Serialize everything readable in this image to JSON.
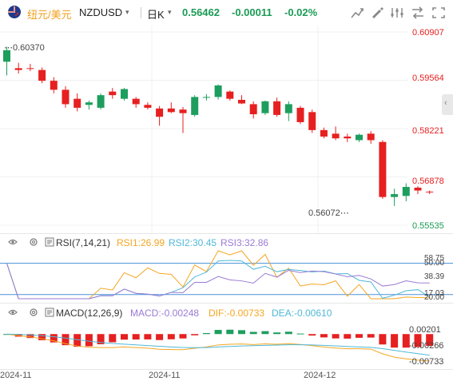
{
  "header": {
    "symbol_cn": "纽元/美元",
    "symbol": "NZDUSD",
    "period": "日K",
    "price": "0.56462",
    "change": "-0.00011",
    "change_pct": "-0.02%"
  },
  "main_chart": {
    "price_labels": [
      "0.60907",
      "0.59564",
      "0.58221",
      "0.56878",
      "0.55535"
    ],
    "high_label": "0.60370",
    "low_label": "0.56072",
    "candles": [
      [
        0.6008,
        0.605,
        0.597,
        0.604
      ],
      [
        0.599,
        0.6005,
        0.5975,
        0.5985
      ],
      [
        0.599,
        0.6002,
        0.5982,
        0.5988
      ],
      [
        0.5985,
        0.5992,
        0.5948,
        0.5955
      ],
      [
        0.5955,
        0.5965,
        0.592,
        0.593
      ],
      [
        0.593,
        0.594,
        0.588,
        0.589
      ],
      [
        0.5905,
        0.592,
        0.587,
        0.588
      ],
      [
        0.5888,
        0.59,
        0.5875,
        0.5895
      ],
      [
        0.588,
        0.592,
        0.5875,
        0.5915
      ],
      [
        0.5925,
        0.5935,
        0.5905,
        0.5915
      ],
      [
        0.5905,
        0.5935,
        0.59,
        0.5932
      ],
      [
        0.5905,
        0.591,
        0.588,
        0.589
      ],
      [
        0.5888,
        0.5895,
        0.5875,
        0.588
      ],
      [
        0.5878,
        0.5885,
        0.583,
        0.5855
      ],
      [
        0.5878,
        0.5895,
        0.5865,
        0.5868
      ],
      [
        0.5875,
        0.5882,
        0.581,
        0.5865
      ],
      [
        0.586,
        0.5915,
        0.5855,
        0.591
      ],
      [
        0.591,
        0.5918,
        0.59,
        0.591
      ],
      [
        0.591,
        0.5945,
        0.5903,
        0.5942
      ],
      [
        0.5925,
        0.5928,
        0.59,
        0.5905
      ],
      [
        0.5902,
        0.5915,
        0.589,
        0.5892
      ],
      [
        0.589,
        0.5898,
        0.585,
        0.5862
      ],
      [
        0.5865,
        0.59,
        0.586,
        0.5898
      ],
      [
        0.5898,
        0.5908,
        0.5855,
        0.586
      ],
      [
        0.5865,
        0.5898,
        0.5843,
        0.589
      ],
      [
        0.588,
        0.5885,
        0.5835,
        0.584
      ],
      [
        0.5868,
        0.5875,
        0.581,
        0.5818
      ],
      [
        0.5818,
        0.5825,
        0.5795,
        0.58
      ],
      [
        0.5808,
        0.5828,
        0.579,
        0.5795
      ],
      [
        0.58,
        0.5808,
        0.5785,
        0.5795
      ],
      [
        0.579,
        0.5808,
        0.5785,
        0.5805
      ],
      [
        0.5808,
        0.5815,
        0.578,
        0.579
      ],
      [
        0.5785,
        0.579,
        0.5627,
        0.5632
      ],
      [
        0.5632,
        0.5655,
        0.5607,
        0.564
      ],
      [
        0.5635,
        0.567,
        0.562,
        0.566
      ],
      [
        0.5658,
        0.5662,
        0.564,
        0.565
      ],
      [
        0.5647,
        0.565,
        0.564,
        0.5646
      ]
    ]
  },
  "rsi": {
    "label": "RSI(7,14,21)",
    "rsi1": "RSI1:26.99",
    "rsi2": "RSI2:30.45",
    "rsi3": "RSI3:32.86",
    "axis_labels": [
      "58.75",
      "50.00",
      "38.39",
      "17.03",
      "20.00"
    ],
    "colors": {
      "rsi1": "#f5a623",
      "rsi2": "#4fb8d8",
      "rsi3": "#9a7bd4"
    }
  },
  "macd": {
    "label": "MACD(12,26,9)",
    "macd_val": "MACD:-0.00248",
    "dif": "DIF:-0.00733",
    "dea": "DEA:-0.00610",
    "axis_labels": [
      "0.00201",
      "-0.00266",
      "-0.00733"
    ],
    "colors": {
      "macd": "#9a7bd4",
      "dif": "#f5a623",
      "dea": "#4fb8d8"
    }
  },
  "time_axis": [
    "2024-11",
    "2024-11",
    "2024-12"
  ],
  "colors": {
    "up": "#1e9e5e",
    "down": "#e62020",
    "accent": "#1a9b55"
  }
}
